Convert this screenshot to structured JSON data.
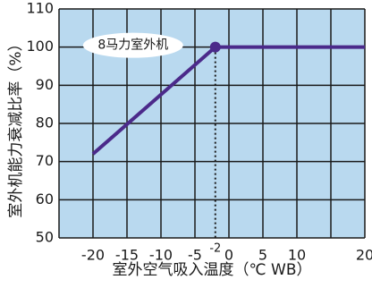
{
  "chart_data": {
    "type": "line",
    "xlabel": "室外空气吸入温度（℃ WB）",
    "ylabel": "室外机能力衰减比率（%）",
    "xlim": [
      -25,
      20
    ],
    "ylim": [
      50,
      110
    ],
    "x_ticks": [
      -20,
      -15,
      -10,
      -5,
      -2,
      0,
      5,
      10,
      20
    ],
    "x_tick_labels": [
      "-20",
      "-15",
      "-10",
      "-5",
      "-2",
      "0",
      "5",
      "10",
      "20"
    ],
    "y_ticks": [
      50,
      60,
      70,
      80,
      90,
      100,
      110
    ],
    "y_tick_labels": [
      "50",
      "60",
      "70",
      "80",
      "90",
      "100",
      "110"
    ],
    "grid": true,
    "series": [
      {
        "x": [
          -20,
          -2,
          0,
          5,
          10,
          15,
          20
        ],
        "y": [
          72,
          100,
          100,
          100,
          100,
          100,
          100
        ],
        "color": "#4b2a8a"
      }
    ],
    "annotations": [
      {
        "text": "8马力室外机",
        "x": -2,
        "y": 100
      }
    ],
    "plot_background": "#b9d9ef",
    "grid_color": "#1a1a1a"
  }
}
